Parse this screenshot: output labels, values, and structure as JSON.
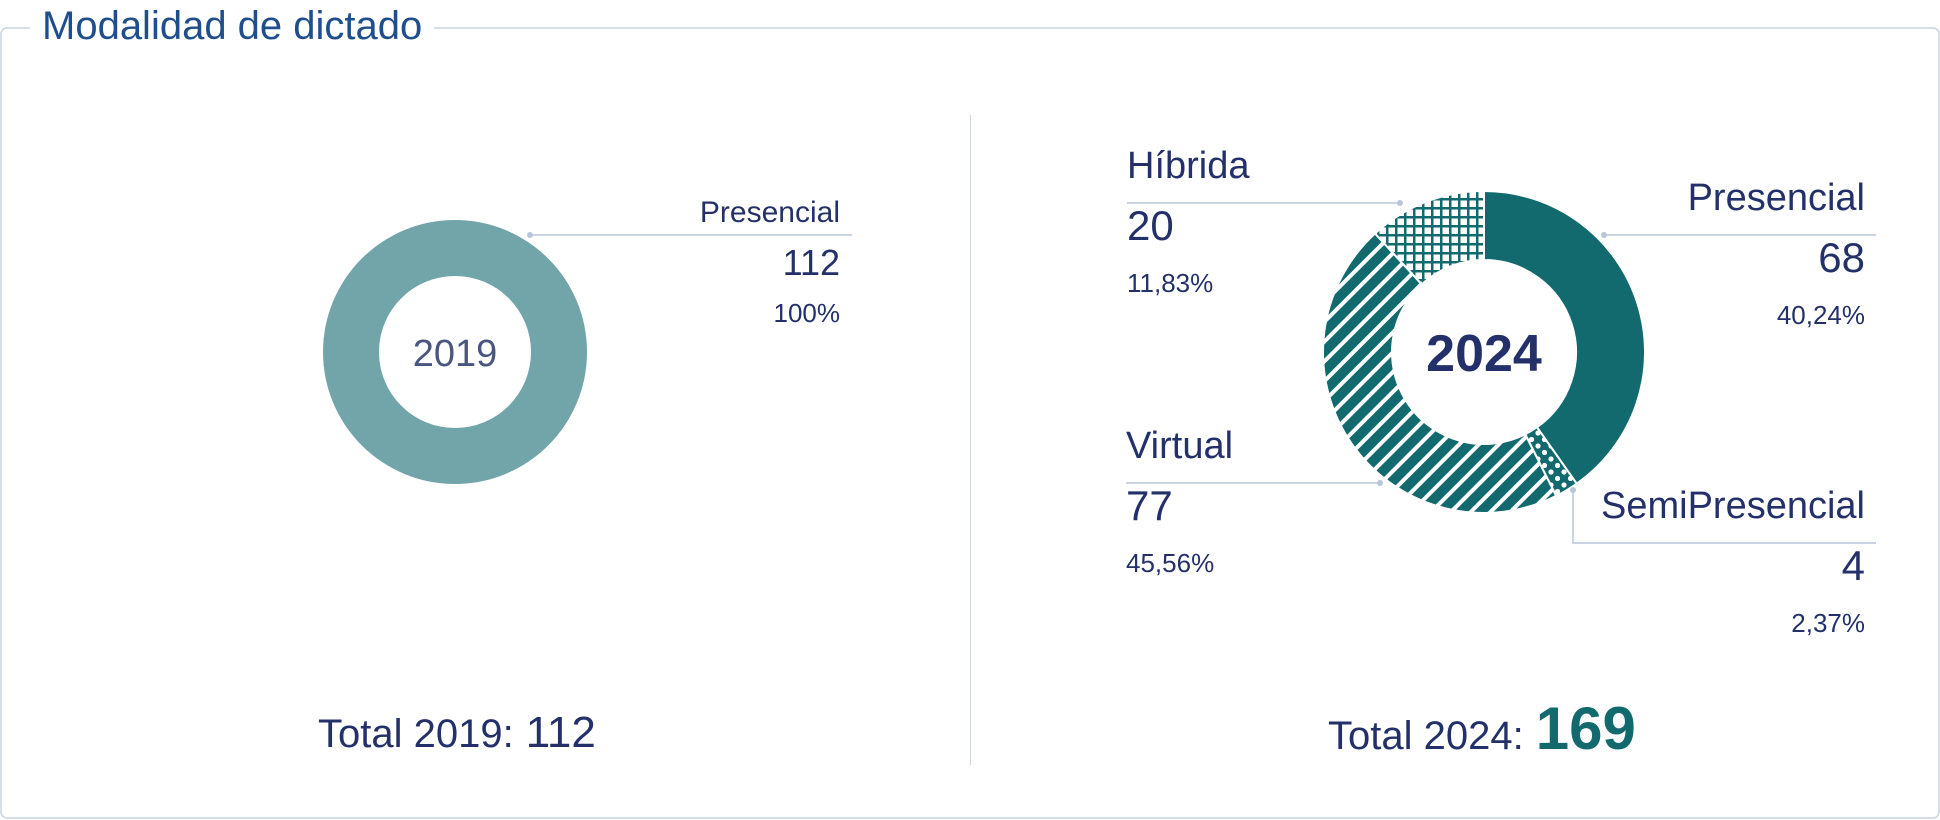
{
  "title": "Modalidad de dictado",
  "colors": {
    "presencial_2019": "#72a5aa",
    "teal": "#126a6e",
    "text": "#24306a",
    "title": "#1f4e8c",
    "leader": "#b9c5d9"
  },
  "chart_data": [
    {
      "type": "pie",
      "center_label": "2019",
      "slices": [
        {
          "label": "Presencial",
          "value": 112,
          "percent": "100%",
          "pattern": "solid"
        }
      ],
      "total_label": "Total 2019:",
      "total_value": "112"
    },
    {
      "type": "pie",
      "center_label": "2024",
      "slices": [
        {
          "label": "Presencial",
          "value": 68,
          "percent": "40,24%",
          "pattern": "solid"
        },
        {
          "label": "SemiPresencial",
          "value": 4,
          "percent": "2,37%",
          "pattern": "dots"
        },
        {
          "label": "Virtual",
          "value": 77,
          "percent": "45,56%",
          "pattern": "diagonal"
        },
        {
          "label": "Híbrida",
          "value": 20,
          "percent": "11,83%",
          "pattern": "grid"
        }
      ],
      "total_label": "Total 2024:",
      "total_value": "169"
    }
  ]
}
